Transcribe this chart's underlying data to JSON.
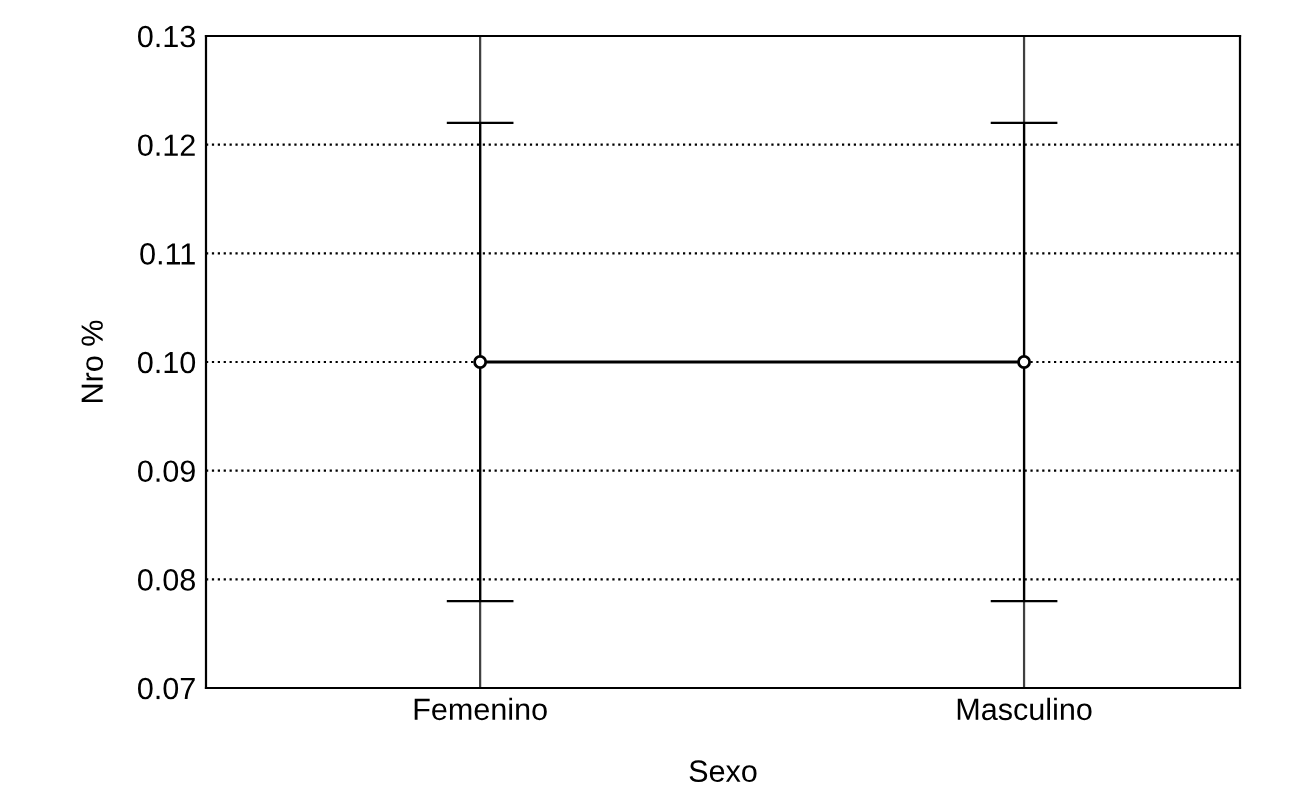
{
  "chart_data": {
    "type": "line",
    "xlabel": "Sexo",
    "ylabel": "Nro %",
    "categories": [
      "Femenino",
      "Masculino"
    ],
    "series": [
      {
        "color": "#000000",
        "values": [
          0.1,
          0.1
        ],
        "errors": [
          0.022,
          0.022
        ]
      }
    ],
    "ylim": [
      0.07,
      0.13
    ],
    "yticks": [
      {
        "value": 0.07,
        "label": "0.07"
      },
      {
        "value": 0.08,
        "label": "0.08"
      },
      {
        "value": 0.09,
        "label": "0.09"
      },
      {
        "value": 0.1,
        "label": "0.10"
      },
      {
        "value": 0.11,
        "label": "0.11"
      },
      {
        "value": 0.12,
        "label": "0.12"
      },
      {
        "value": 0.13,
        "label": "0.13"
      }
    ],
    "grid": true,
    "marker": "circle",
    "line_style": "solid"
  }
}
